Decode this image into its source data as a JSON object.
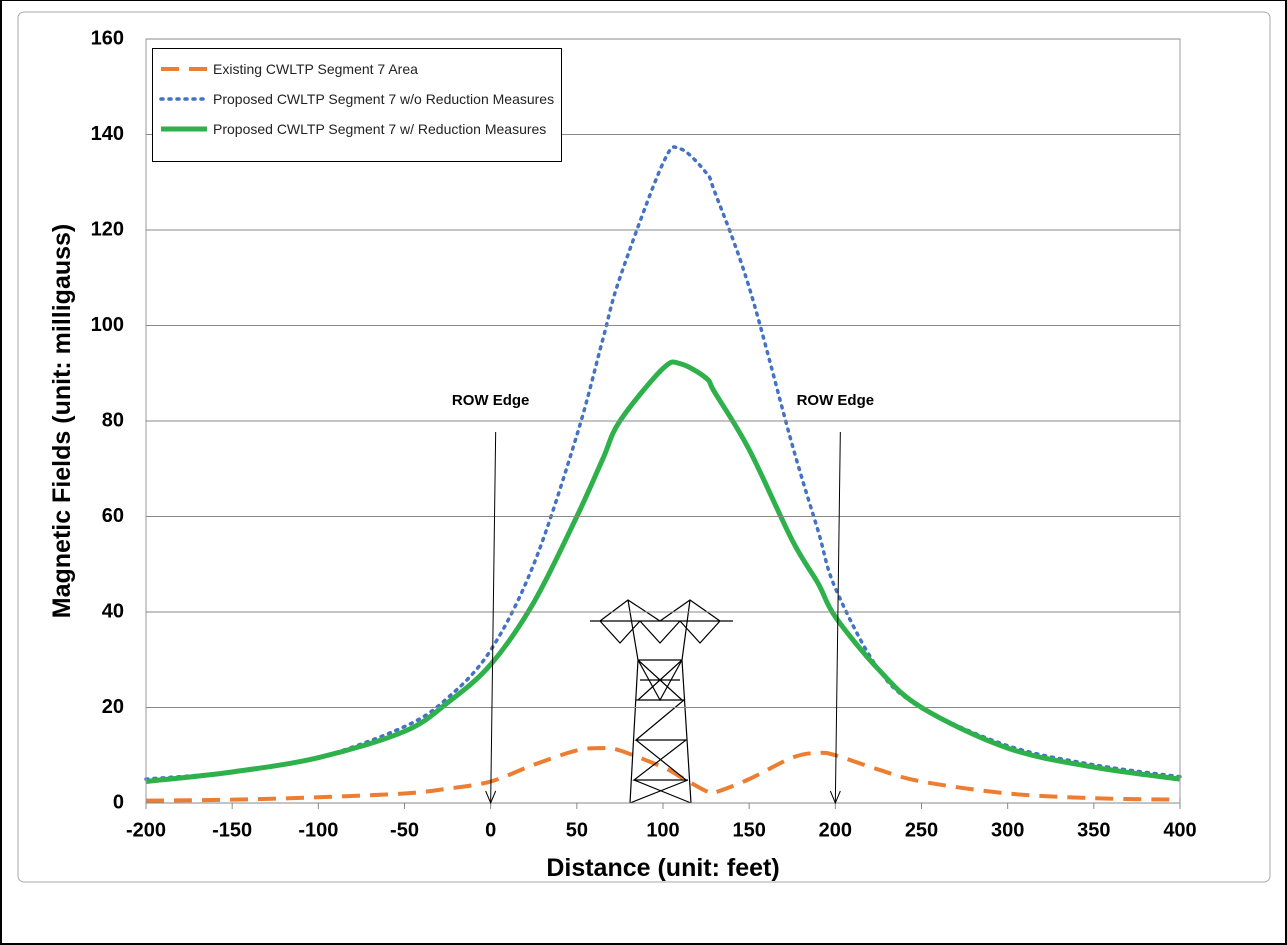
{
  "chart_data": {
    "type": "line",
    "xlabel": "Distance (unit: feet)",
    "ylabel": "Magnetic Fields (unit: milligauss)",
    "x": [
      -200,
      -150,
      -100,
      -50,
      -25,
      0,
      25,
      50,
      65,
      75,
      100,
      110,
      125,
      130,
      150,
      175,
      190,
      200,
      225,
      250,
      300,
      350,
      400
    ],
    "series": [
      {
        "name": "Existing CWLTP Segment 7 Area",
        "color": "#ed7d31",
        "style": "dashed",
        "values": [
          0.5,
          0.7,
          1.2,
          2,
          3,
          4.5,
          8,
          11,
          11.5,
          11,
          7.5,
          5.5,
          2.5,
          2.2,
          5,
          9.5,
          10.5,
          10,
          7,
          4.5,
          2,
          1,
          0.7
        ]
      },
      {
        "name": "Proposed CWLTP Segment 7 w/o Reduction Measures",
        "color": "#4472c4",
        "style": "dotted",
        "values": [
          5,
          6.5,
          9.5,
          16,
          22,
          32,
          50,
          77,
          97,
          110,
          134,
          137,
          132,
          128,
          108,
          75,
          57,
          45,
          28,
          20,
          12,
          8,
          5.5
        ]
      },
      {
        "name": "Proposed CWLTP Segment 7 w/ Reduction Measures",
        "color": "#2eb14b",
        "style": "solid",
        "values": [
          4.5,
          6.5,
          9.5,
          15,
          21,
          29,
          42,
          60,
          72,
          80,
          91,
          92,
          89,
          86,
          74,
          55,
          46,
          39,
          28,
          20,
          11.5,
          7.5,
          5
        ]
      }
    ],
    "xlim": [
      -200,
      400
    ],
    "xticks": [
      -200,
      -150,
      -100,
      -50,
      0,
      50,
      100,
      150,
      200,
      250,
      300,
      350,
      400
    ],
    "ylim": [
      0,
      160
    ],
    "yticks": [
      0,
      20,
      40,
      60,
      80,
      100,
      120,
      140,
      160
    ],
    "grid": true,
    "legend": "upper left",
    "annotations": [
      {
        "text": "ROW Edge",
        "x": 0
      },
      {
        "text": "ROW Edge",
        "x": 200
      }
    ]
  }
}
